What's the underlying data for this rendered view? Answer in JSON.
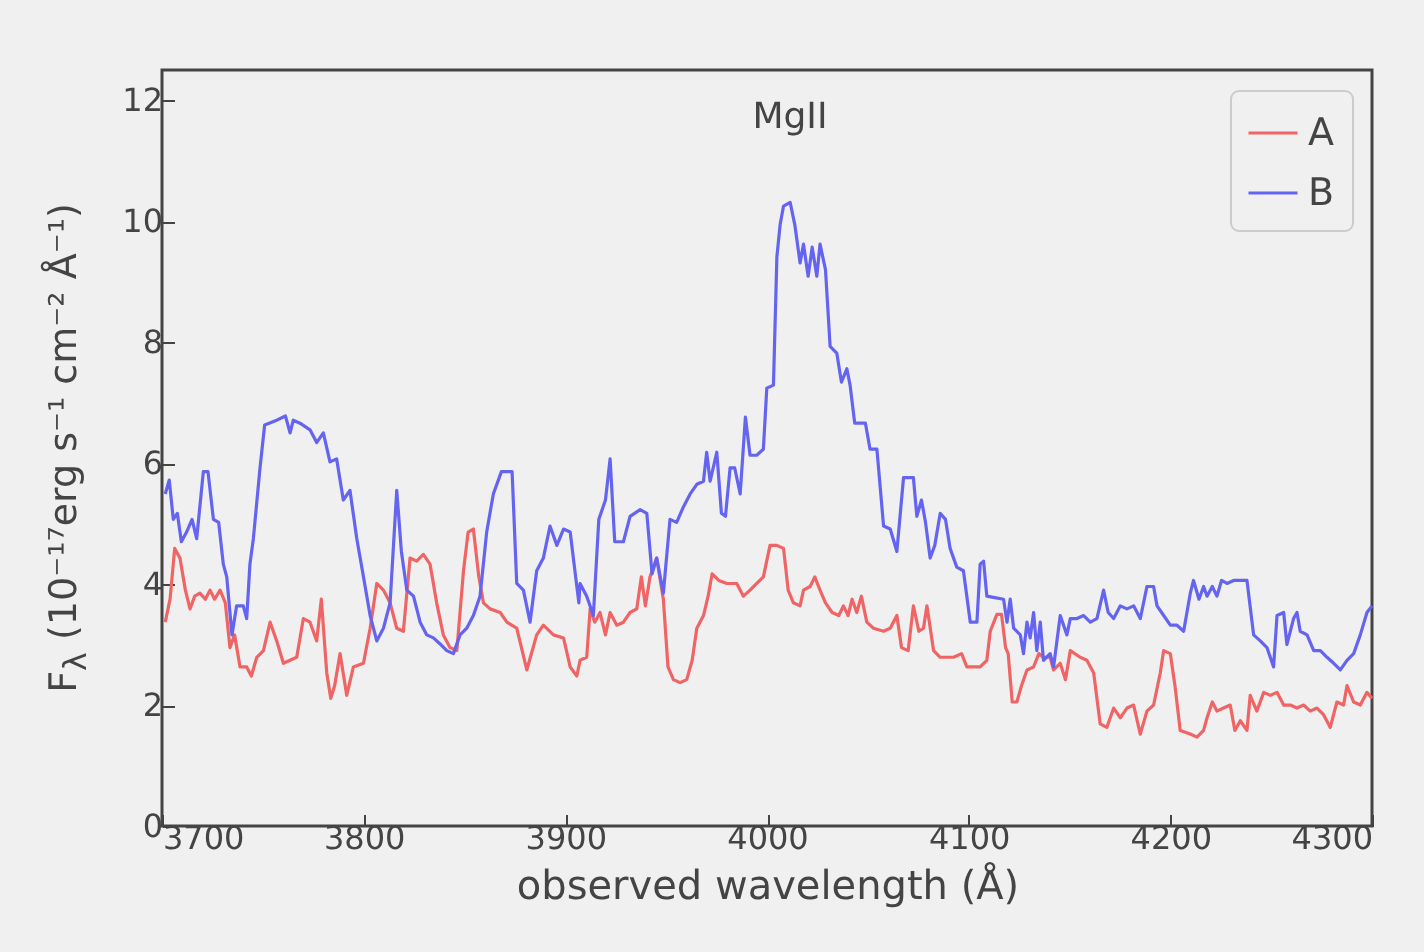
{
  "chart_data": {
    "type": "line",
    "xlabel": "observed wavelength (Å)",
    "ylabel": "F$_{λ}$ (10⁻¹⁷erg s⁻¹ cm⁻² Å⁻¹)",
    "xlim": [
      3700,
      4300
    ],
    "xticks": [
      3700,
      3800,
      3900,
      4000,
      4100,
      4200,
      4300
    ],
    "ylim": [
      0,
      12.5
    ],
    "yticks": [
      0,
      2,
      4,
      6,
      8,
      10,
      12
    ],
    "grid": false,
    "legend": "top right",
    "line_style": "solid",
    "annotations": [
      "MgII"
    ],
    "series": [
      {
        "name": "A",
        "color": "#ef6464",
        "x": [
          3701.6,
          3704.0,
          3706.3,
          3708.9,
          3711.6,
          3713.9,
          3716.2,
          3718.8,
          3721.5,
          3723.8,
          3726.1,
          3728.8,
          3731.4,
          3733.7,
          3736.0,
          3738.7,
          3742.0,
          3744.3,
          3747.0,
          3750.3,
          3753.6,
          3756.9,
          3760.2,
          3763.5,
          3766.8,
          3770.1,
          3773.4,
          3776.7,
          3779.0,
          3781.7,
          3783.7,
          3785.6,
          3788.3,
          3791.6,
          3794.9,
          3799.9,
          3803.2,
          3806.5,
          3809.8,
          3813.1,
          3816.4,
          3819.7,
          3823.0,
          3826.3,
          3829.6,
          3832.9,
          3836.2,
          3839.5,
          3842.8,
          3846.2,
          3849.5,
          3851.8,
          3854.4,
          3857.1,
          3859.4,
          3862.7,
          3867.7,
          3871.0,
          3875.9,
          3880.9,
          3885.8,
          3889.1,
          3894.1,
          3899.1,
          3902.4,
          3905.7,
          3907.3,
          3910.6,
          3912.3,
          3914.6,
          3917.2,
          3919.9,
          3922.2,
          3925.5,
          3928.8,
          3932.1,
          3935.4,
          3937.7,
          3939.7,
          3942.0,
          3945.3,
          3948.6,
          3950.9,
          3953.6,
          3956.9,
          3960.2,
          3962.9,
          3965.2,
          3968.5,
          3970.8,
          3972.8,
          3976.1,
          3980.1,
          3985.0,
          3988.3,
          3991.6,
          3994.9,
          3998.2,
          4001.5,
          4004.9,
          4008.2,
          4010.5,
          4013.1,
          4016.4,
          4018.1,
          4021.4,
          4023.7,
          4026.3,
          4029.0,
          4032.3,
          4035.6,
          4037.9,
          4040.2,
          4042.2,
          4044.5,
          4046.8,
          4049.5,
          4052.8,
          4057.8,
          4061.1,
          4064.4,
          4066.7,
          4070.0,
          4072.6,
          4075.3,
          4077.6,
          4079.3,
          4082.6,
          4085.9,
          4092.5,
          4096.5,
          4099.1,
          4104.1,
          4105.7,
          4109.0,
          4110.7,
          4114.0,
          4116.3,
          4118.3,
          4119.6,
          4121.6,
          4123.9,
          4126.2,
          4128.9,
          4132.2,
          4134.8,
          4137.1,
          4140.4,
          4142.1,
          4145.4,
          4148.0,
          4150.4,
          4155.3,
          4158.6,
          4162.0,
          4165.2,
          4168.5,
          4171.9,
          4175.2,
          4178.5,
          4181.8,
          4185.1,
          4188.4,
          4191.7,
          4195.0,
          4196.7,
          4200.0,
          4202.3,
          4204.9,
          4209.9,
          4213.2,
          4216.5,
          4218.2,
          4220.8,
          4223.1,
          4226.4,
          4229.7,
          4232.0,
          4234.7,
          4238.0,
          4239.6,
          4242.9,
          4246.3,
          4249.6,
          4252.9,
          4256.2,
          4259.5,
          4262.8,
          4266.1,
          4269.4,
          4272.7,
          4276.0,
          4279.3,
          4282.6,
          4285.9,
          4287.6,
          4290.9,
          4294.2,
          4297.5,
          4300
        ],
        "values": [
          3.37,
          3.75,
          4.59,
          4.43,
          3.9,
          3.59,
          3.8,
          3.85,
          3.75,
          3.9,
          3.75,
          3.9,
          3.69,
          2.95,
          3.16,
          2.63,
          2.63,
          2.48,
          2.79,
          2.9,
          3.37,
          3.06,
          2.69,
          2.74,
          2.79,
          3.43,
          3.37,
          3.06,
          3.75,
          2.53,
          2.11,
          2.32,
          2.85,
          2.16,
          2.63,
          2.69,
          3.27,
          4.01,
          3.9,
          3.69,
          3.27,
          3.22,
          4.43,
          4.38,
          4.49,
          4.33,
          3.69,
          3.16,
          2.95,
          2.9,
          4.22,
          4.86,
          4.91,
          4.12,
          3.69,
          3.59,
          3.53,
          3.37,
          3.27,
          2.58,
          3.16,
          3.32,
          3.16,
          3.11,
          2.63,
          2.48,
          2.74,
          2.79,
          3.59,
          3.37,
          3.53,
          3.16,
          3.53,
          3.32,
          3.37,
          3.53,
          3.59,
          4.12,
          3.64,
          4.12,
          4.43,
          3.75,
          2.63,
          2.42,
          2.37,
          2.42,
          2.74,
          3.27,
          3.48,
          3.8,
          4.17,
          4.06,
          4.01,
          4.01,
          3.8,
          3.9,
          4.01,
          4.12,
          4.64,
          4.64,
          4.59,
          3.9,
          3.69,
          3.64,
          3.9,
          3.96,
          4.12,
          3.9,
          3.69,
          3.53,
          3.48,
          3.64,
          3.48,
          3.75,
          3.53,
          3.8,
          3.37,
          3.27,
          3.22,
          3.27,
          3.48,
          2.95,
          2.9,
          3.64,
          3.22,
          3.27,
          3.64,
          2.9,
          2.79,
          2.79,
          2.85,
          2.63,
          2.63,
          2.63,
          2.74,
          3.22,
          3.5,
          3.5,
          2.95,
          2.85,
          2.05,
          2.05,
          2.32,
          2.58,
          2.63,
          2.85,
          2.79,
          2.79,
          2.58,
          2.69,
          2.42,
          2.9,
          2.79,
          2.74,
          2.53,
          1.69,
          1.63,
          1.95,
          1.79,
          1.95,
          2.0,
          1.52,
          1.9,
          2.0,
          2.53,
          2.9,
          2.85,
          2.32,
          1.58,
          1.52,
          1.47,
          1.58,
          1.79,
          2.05,
          1.9,
          1.95,
          2.0,
          1.58,
          1.74,
          1.58,
          2.16,
          1.9,
          2.21,
          2.16,
          2.21,
          2.0,
          2.0,
          1.95,
          2.0,
          1.9,
          1.95,
          1.84,
          1.63,
          2.05,
          2.0,
          2.32,
          2.05,
          2.0,
          2.21,
          2.11
        ]
      },
      {
        "name": "B",
        "color": "#6464f0",
        "x": [
          3701.6,
          3703.6,
          3705.6,
          3707.6,
          3709.6,
          3712.2,
          3714.9,
          3717.2,
          3720.5,
          3722.8,
          3725.5,
          3728.1,
          3730.4,
          3732.1,
          3734.7,
          3737.0,
          3740.3,
          3742.0,
          3743.6,
          3745.3,
          3748.6,
          3750.9,
          3756.9,
          3761.2,
          3763.5,
          3765.1,
          3768.4,
          3773.4,
          3776.7,
          3780.0,
          3783.3,
          3786.6,
          3789.9,
          3793.2,
          3796.6,
          3799.9,
          3803.2,
          3806.5,
          3809.8,
          3813.1,
          3816.4,
          3818.7,
          3821.4,
          3824.7,
          3828.0,
          3831.3,
          3834.6,
          3837.9,
          3841.2,
          3844.5,
          3847.8,
          3851.1,
          3854.4,
          3857.7,
          3861.0,
          3864.3,
          3868.3,
          3873.6,
          3875.9,
          3879.2,
          3882.5,
          3885.8,
          3889.1,
          3892.4,
          3895.8,
          3899.1,
          3902.4,
          3906.7,
          3907.3,
          3910.6,
          3913.9,
          3916.6,
          3919.9,
          3922.2,
          3924.5,
          3928.8,
          3932.1,
          3937.1,
          3940.4,
          3943.0,
          3945.3,
          3948.6,
          3951.9,
          3955.2,
          3958.6,
          3961.9,
          3965.2,
          3968.5,
          3970.1,
          3971.8,
          3975.1,
          3977.4,
          3979.4,
          3981.7,
          3984.0,
          3986.7,
          3989.3,
          3991.6,
          3994.9,
          3998.2,
          3999.9,
          4003.2,
          4004.9,
          4006.5,
          4008.2,
          4011.5,
          4013.8,
          4016.4,
          4018.1,
          4020.4,
          4022.4,
          4024.7,
          4026.3,
          4029.0,
          4031.3,
          4034.6,
          4036.9,
          4039.6,
          4041.2,
          4043.5,
          4048.8,
          4051.1,
          4054.5,
          4057.8,
          4061.1,
          4064.4,
          4067.7,
          4072.6,
          4074.3,
          4076.6,
          4078.6,
          4080.9,
          4083.2,
          4085.9,
          4088.5,
          4090.8,
          4094.1,
          4097.4,
          4100.8,
          4104.1,
          4105.7,
          4107.4,
          4109.0,
          4112.3,
          4117.3,
          4119.0,
          4120.6,
          4122.3,
          4125.6,
          4127.2,
          4128.9,
          4130.5,
          4132.2,
          4133.8,
          4135.5,
          4137.1,
          4140.4,
          4142.1,
          4145.4,
          4148.7,
          4150.4,
          4153.7,
          4157.0,
          4160.3,
          4163.6,
          4166.9,
          4169.2,
          4171.9,
          4175.2,
          4178.5,
          4181.8,
          4185.1,
          4188.4,
          4191.7,
          4193.4,
          4196.7,
          4200.0,
          4203.3,
          4206.6,
          4209.9,
          4211.5,
          4214.2,
          4216.5,
          4218.2,
          4220.8,
          4223.1,
          4225.4,
          4228.1,
          4231.4,
          4238.0,
          4241.3,
          4244.6,
          4247.9,
          4251.2,
          4252.9,
          4256.2,
          4257.8,
          4261.1,
          4262.8,
          4264.4,
          4267.8,
          4271.1,
          4274.4,
          4277.7,
          4281.0,
          4284.3,
          4287.6,
          4290.9,
          4294.2,
          4297.5,
          4300
        ],
        "values": [
          5.49,
          5.72,
          5.07,
          5.17,
          4.7,
          4.86,
          5.07,
          4.75,
          5.86,
          5.86,
          5.07,
          5.02,
          4.33,
          4.12,
          3.16,
          3.64,
          3.64,
          3.43,
          4.33,
          4.75,
          5.92,
          6.63,
          6.71,
          6.78,
          6.5,
          6.71,
          6.66,
          6.55,
          6.34,
          6.5,
          6.02,
          6.07,
          5.39,
          5.55,
          4.75,
          4.12,
          3.48,
          3.06,
          3.27,
          3.69,
          5.55,
          4.54,
          3.9,
          3.8,
          3.37,
          3.16,
          3.11,
          3.01,
          2.9,
          2.85,
          3.16,
          3.27,
          3.48,
          3.8,
          4.86,
          5.49,
          5.86,
          5.86,
          4.01,
          3.9,
          3.37,
          4.22,
          4.43,
          4.96,
          4.64,
          4.91,
          4.86,
          3.69,
          4.01,
          3.8,
          3.48,
          5.07,
          5.39,
          6.07,
          4.7,
          4.7,
          5.12,
          5.23,
          5.17,
          4.17,
          4.43,
          3.85,
          5.07,
          5.02,
          5.28,
          5.49,
          5.65,
          5.7,
          6.18,
          5.7,
          6.18,
          5.17,
          5.12,
          5.92,
          5.92,
          5.49,
          6.76,
          6.13,
          6.13,
          6.23,
          7.24,
          7.29,
          9.41,
          9.94,
          10.25,
          10.31,
          9.94,
          9.31,
          9.62,
          9.09,
          9.57,
          9.09,
          9.62,
          9.2,
          7.93,
          7.82,
          7.34,
          7.56,
          7.29,
          6.66,
          6.66,
          6.23,
          6.23,
          4.96,
          4.91,
          4.54,
          5.76,
          5.76,
          5.12,
          5.39,
          5.02,
          4.43,
          4.64,
          5.17,
          5.07,
          4.59,
          4.28,
          4.22,
          3.37,
          3.37,
          4.33,
          4.38,
          3.8,
          3.78,
          3.75,
          3.37,
          3.75,
          3.27,
          3.16,
          2.85,
          3.37,
          3.11,
          3.53,
          2.9,
          3.37,
          2.74,
          2.85,
          2.63,
          3.48,
          3.16,
          3.43,
          3.43,
          3.48,
          3.37,
          3.43,
          3.9,
          3.53,
          3.43,
          3.64,
          3.59,
          3.64,
          3.43,
          3.96,
          3.96,
          3.64,
          3.48,
          3.32,
          3.32,
          3.22,
          3.85,
          4.06,
          3.75,
          3.96,
          3.8,
          3.96,
          3.8,
          4.06,
          4.01,
          4.06,
          4.06,
          3.16,
          3.06,
          2.95,
          2.63,
          3.48,
          3.53,
          3.0,
          3.43,
          3.53,
          3.22,
          3.16,
          2.9,
          2.9,
          2.79,
          2.69,
          2.58,
          2.74,
          2.85,
          3.16,
          3.53,
          3.64
        ]
      }
    ]
  }
}
